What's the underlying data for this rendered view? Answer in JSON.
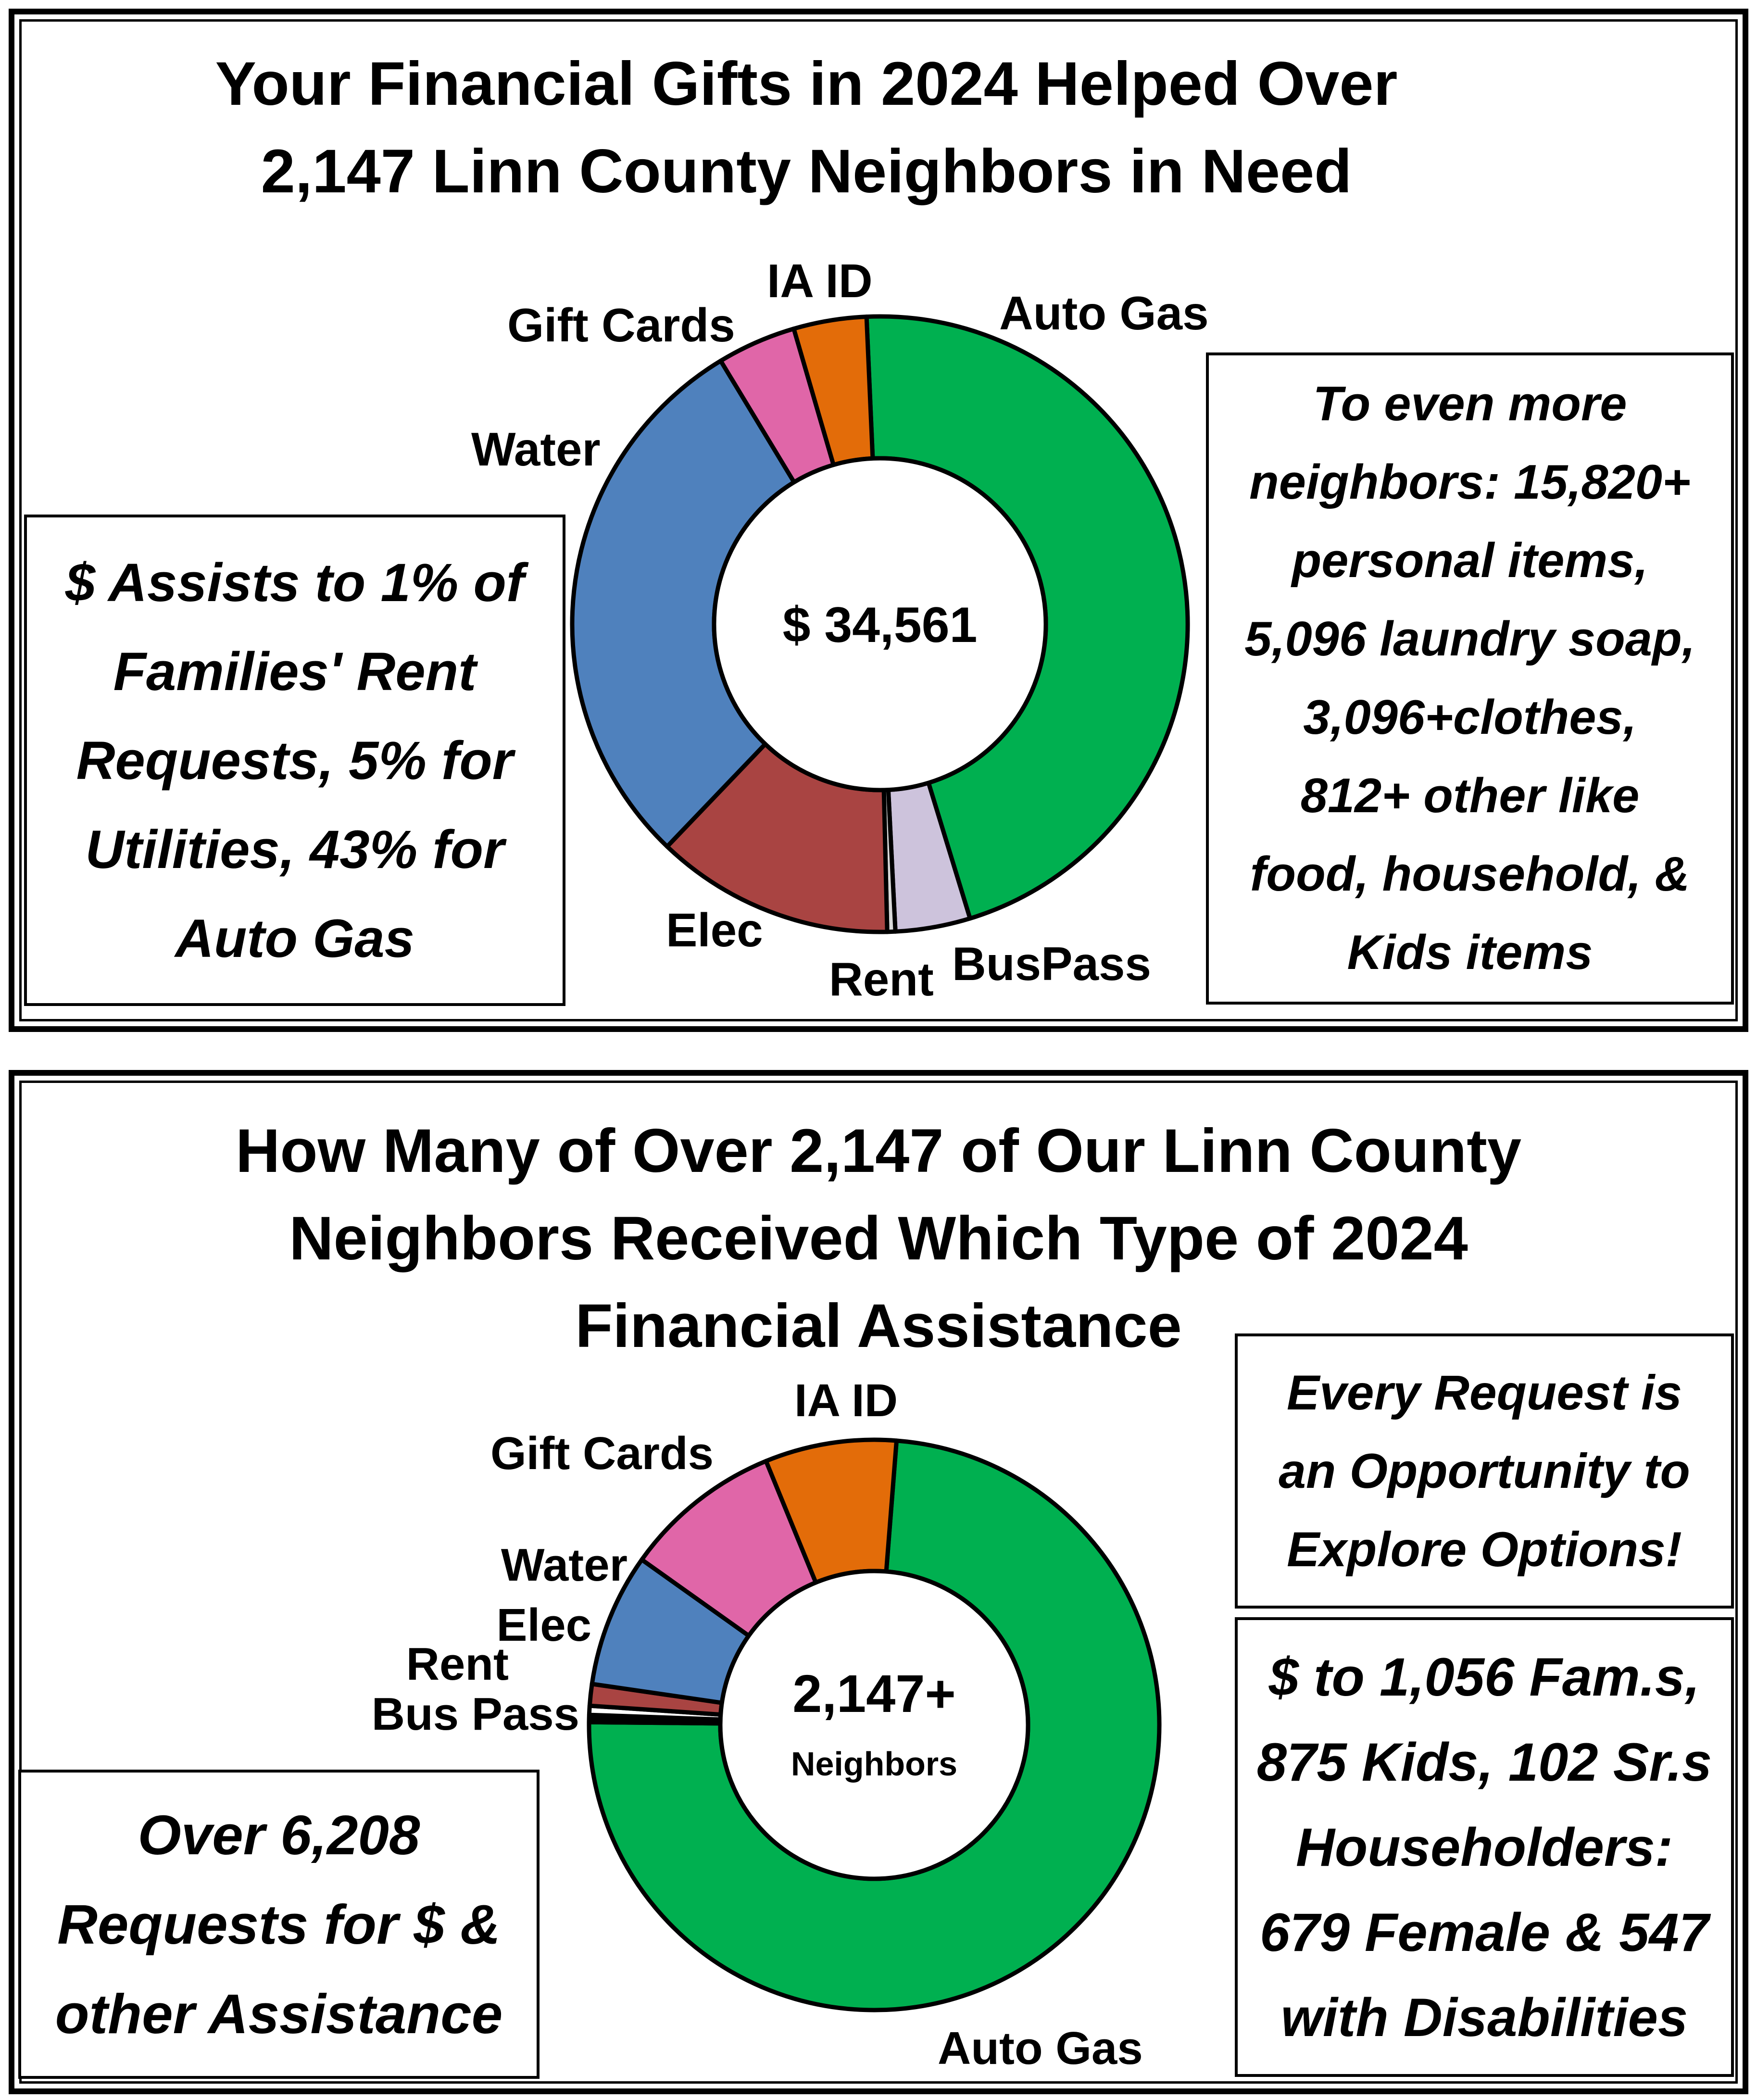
{
  "top": {
    "title": "Your Financial Gifts in 2024 Helped Over\n2,147 Linn County Neighbors in Need",
    "left_box": "$ Assists to 1% of\nFamilies' Rent\nRequests,  5% for\nUtilities, 43% for\nAuto Gas",
    "right_box": "To even more\nneighbors: 15,820+\npersonal items,\n5,096 laundry soap,\n3,096+clothes,\n812+ other like\nfood, household, &\nKids items"
  },
  "bottom": {
    "title": "How Many of Over 2,147 of Our Linn County\nNeighbors Received Which Type of 2024\nFinancial Assistance",
    "right_top_box": "Every Request is\nan Opportunity to\nExplore Options!",
    "right_bottom_box": "$ to 1,056 Fam.s,\n875 Kids, 102 Sr.s\nHouseholders:\n679 Female & 547\nwith Disabilities",
    "left_box": "Over 6,208\nRequests for $ &\nother Assistance"
  },
  "chart_data": [
    {
      "type": "pie",
      "center_label": "$ 34,561",
      "slices": [
        {
          "label": "Auto Gas",
          "value": 43.3,
          "color": "#00b050"
        },
        {
          "label": "BusPass",
          "value": 3.7,
          "color": "#cdc3dc"
        },
        {
          "label": "Rent",
          "value": 0.4,
          "color": "#d9d9d9"
        },
        {
          "label": "Elec",
          "value": 11.8,
          "color": "#a94442"
        },
        {
          "label": "Water",
          "value": 27.5,
          "color": "#4f81bd"
        },
        {
          "label": "Gift Cards",
          "value": 3.9,
          "color": "#e066a8"
        },
        {
          "label": "IA ID",
          "value": 3.6,
          "color": "#e36c09"
        }
      ]
    },
    {
      "type": "pie",
      "center_label": "2,147+",
      "center_sublabel": "Neighbors",
      "slices": [
        {
          "label": "Auto Gas",
          "value": 72.5,
          "color": "#00b050"
        },
        {
          "label": "Bus Pass",
          "value": 0.4,
          "color": "#000000"
        },
        {
          "label": "Rent",
          "value": 0.5,
          "color": "#ffffff"
        },
        {
          "label": "Elec",
          "value": 1.2,
          "color": "#a94442"
        },
        {
          "label": "Water",
          "value": 7.4,
          "color": "#4f81bd"
        },
        {
          "label": "Gift Cards",
          "value": 8.8,
          "color": "#e066a8"
        },
        {
          "label": "IA ID",
          "value": 7.3,
          "color": "#e36c09"
        }
      ]
    }
  ]
}
